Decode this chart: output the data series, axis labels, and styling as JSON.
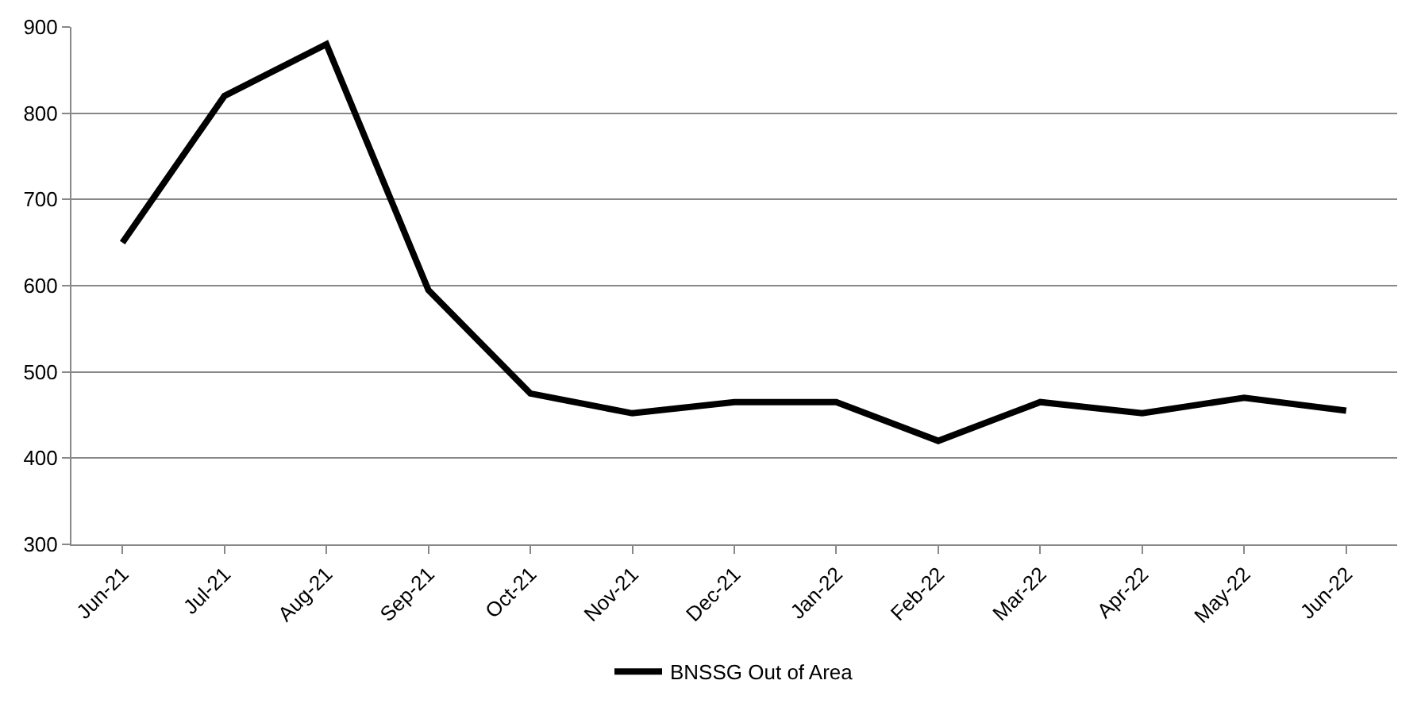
{
  "chart_data": {
    "type": "line",
    "categories": [
      "Jun-21",
      "Jul-21",
      "Aug-21",
      "Sep-21",
      "Oct-21",
      "Nov-21",
      "Dec-21",
      "Jan-22",
      "Feb-22",
      "Mar-22",
      "Apr-22",
      "May-22",
      "Jun-22"
    ],
    "series": [
      {
        "name": "BNSSG Out of Area",
        "color": "#000000",
        "values": [
          650,
          820,
          880,
          595,
          475,
          452,
          465,
          465,
          420,
          465,
          452,
          470,
          455
        ]
      }
    ],
    "ylim": [
      300,
      900
    ],
    "yticks": [
      300,
      400,
      500,
      600,
      700,
      800,
      900
    ],
    "grid": "y",
    "legend": "bottom",
    "marker": "none",
    "line_style": "solid"
  }
}
